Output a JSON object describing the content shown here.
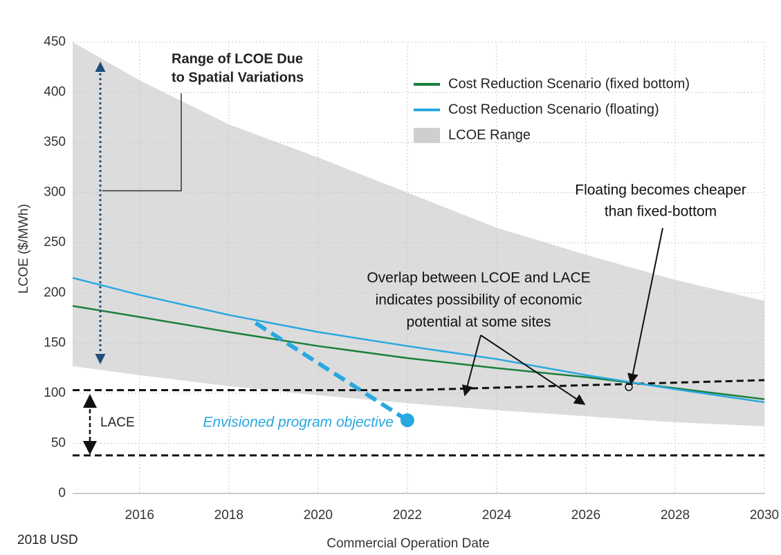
{
  "chart_data": {
    "type": "line",
    "x_label": "Commercial Operation Date",
    "y_label": "LCOE ($/MWh)",
    "footnote": "2018 USD",
    "x": [
      2014.5,
      2016,
      2018,
      2020,
      2022,
      2024,
      2026,
      2028,
      2030
    ],
    "xlim": [
      2014.5,
      2030
    ],
    "xticks": [
      2016,
      2018,
      2020,
      2022,
      2024,
      2026,
      2028,
      2030
    ],
    "ylim": [
      0,
      450
    ],
    "yticks": [
      0,
      50,
      100,
      150,
      200,
      250,
      300,
      350,
      400,
      450
    ],
    "grid": true,
    "legend": "upper right",
    "series": [
      {
        "name": "Cost Reduction Scenario (fixed bottom)",
        "color": "#1a7f3c",
        "values": [
          187,
          176,
          161,
          147,
          135,
          125,
          116,
          105,
          94
        ]
      },
      {
        "name": "Cost Reduction Scenario (floating)",
        "color": "#29a8e0",
        "values": [
          215,
          198,
          178,
          161,
          147,
          134,
          118,
          104,
          91
        ]
      }
    ],
    "range": {
      "name": "LCOE Range",
      "color": "#dcdcdc",
      "upper": [
        450,
        412,
        368,
        335,
        300,
        265,
        238,
        213,
        192
      ],
      "lower": [
        127,
        118,
        107,
        98,
        90,
        83,
        77,
        71,
        67
      ]
    },
    "lace": {
      "label": "LACE",
      "x": [
        2014.5,
        2022,
        2030
      ],
      "upper": [
        103,
        103,
        113
      ],
      "lower": [
        38,
        38,
        38
      ]
    },
    "objective": {
      "label": "Envisioned program objective",
      "color": "#29a8e0",
      "x": [
        2018.6,
        2022
      ],
      "values": [
        170,
        73
      ]
    },
    "annotations": {
      "range_title": [
        "Range of LCOE Due",
        "to Spatial Variations"
      ],
      "crossover": [
        "Floating becomes cheaper",
        "than fixed-bottom"
      ],
      "overlap": [
        "Overlap between LCOE and LACE",
        "indicates possibility of economic",
        "potential at some sites"
      ]
    }
  }
}
